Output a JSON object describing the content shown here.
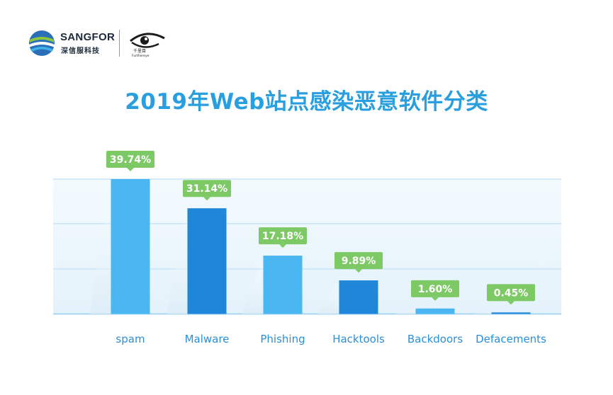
{
  "logos": {
    "sangfor_name": "SANGFOR",
    "sangfor_sub": "深信服科技",
    "partner_name": "千里目",
    "partner_sub": "Furthereye"
  },
  "chart_data": {
    "type": "bar",
    "title": "2019年Web站点感染恶意软件分类",
    "categories": [
      "spam",
      "Malware",
      "Phishing",
      "Hacktools",
      "Backdoors",
      "Defacements"
    ],
    "values": [
      39.74,
      31.14,
      17.18,
      9.89,
      1.6,
      0.45
    ],
    "data_labels": [
      "39.74%",
      "31.14%",
      "17.18%",
      "9.89%",
      "1.60%",
      "0.45%"
    ],
    "xlabel": "",
    "ylabel": "",
    "ylim": [
      0,
      40
    ],
    "grid": true,
    "legend": "none",
    "colors": {
      "bar_light": "#4ab7f2",
      "bar_dark": "#1f86d8",
      "label_bg": "#7dc966",
      "title": "#2a9fe0",
      "grid": "#c9e4f5",
      "category_text": "#2b8fd6"
    }
  }
}
